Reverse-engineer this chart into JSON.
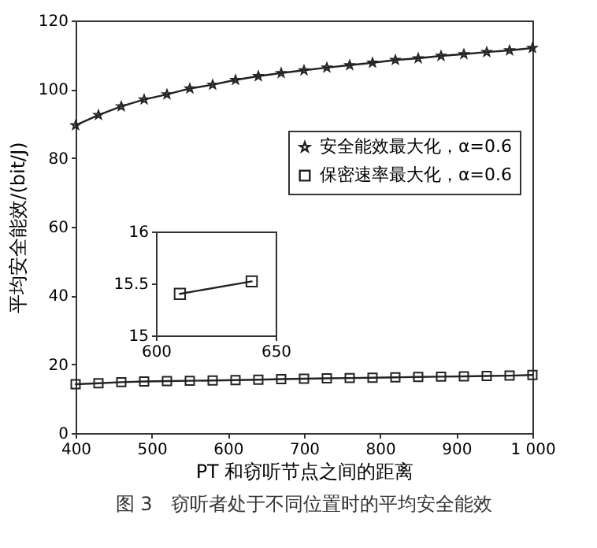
{
  "chart_data": [
    {
      "type": "line",
      "title": "图 3　窃听者处于不同位置时的平均安全能效",
      "xlabel": "PT 和窃听节点之间的距离",
      "ylabel": "平均安全能效/(bit/J)",
      "x": [
        400,
        430,
        460,
        490,
        520,
        550,
        580,
        610,
        640,
        670,
        700,
        730,
        760,
        790,
        820,
        850,
        880,
        910,
        940,
        970,
        1000
      ],
      "series": [
        {
          "name": "安全能效最大化，α=0.6",
          "color": "#222222",
          "marker": "star",
          "values": [
            89.5,
            92.5,
            95,
            97,
            98.5,
            100.2,
            101.3,
            102.7,
            103.8,
            104.7,
            105.5,
            106.3,
            107,
            107.7,
            108.5,
            109,
            109.7,
            110.2,
            110.8,
            111.3,
            112
          ]
        },
        {
          "name": "保密速率最大化，α=0.6",
          "color": "#222222",
          "marker": "square",
          "values": [
            14.2,
            14.5,
            14.8,
            15,
            15.1,
            15.2,
            15.3,
            15.4,
            15.5,
            15.7,
            15.8,
            15.9,
            16,
            16.1,
            16.2,
            16.3,
            16.4,
            16.5,
            16.6,
            16.7,
            16.9
          ]
        }
      ],
      "xlim": [
        400,
        1000
      ],
      "xticks": [
        400,
        500,
        600,
        700,
        800,
        900,
        {
          "value": 1000,
          "label": "1 000"
        }
      ],
      "ylim": [
        0,
        120
      ],
      "yticks": [
        0,
        20,
        40,
        60,
        80,
        100,
        120
      ],
      "grid": false,
      "legend": "top right",
      "line_style": "solid"
    },
    {
      "type": "line",
      "x": [
        610,
        640
      ],
      "series": [
        {
          "color": "#222222",
          "marker": "square",
          "values": [
            15.4,
            15.52
          ]
        }
      ],
      "xlim": [
        600,
        650
      ],
      "xticks": [
        600,
        650
      ],
      "ylim": [
        15,
        16
      ],
      "yticks": [
        15,
        15.5,
        16
      ],
      "grid": false,
      "legend": false,
      "line_style": "solid"
    }
  ]
}
